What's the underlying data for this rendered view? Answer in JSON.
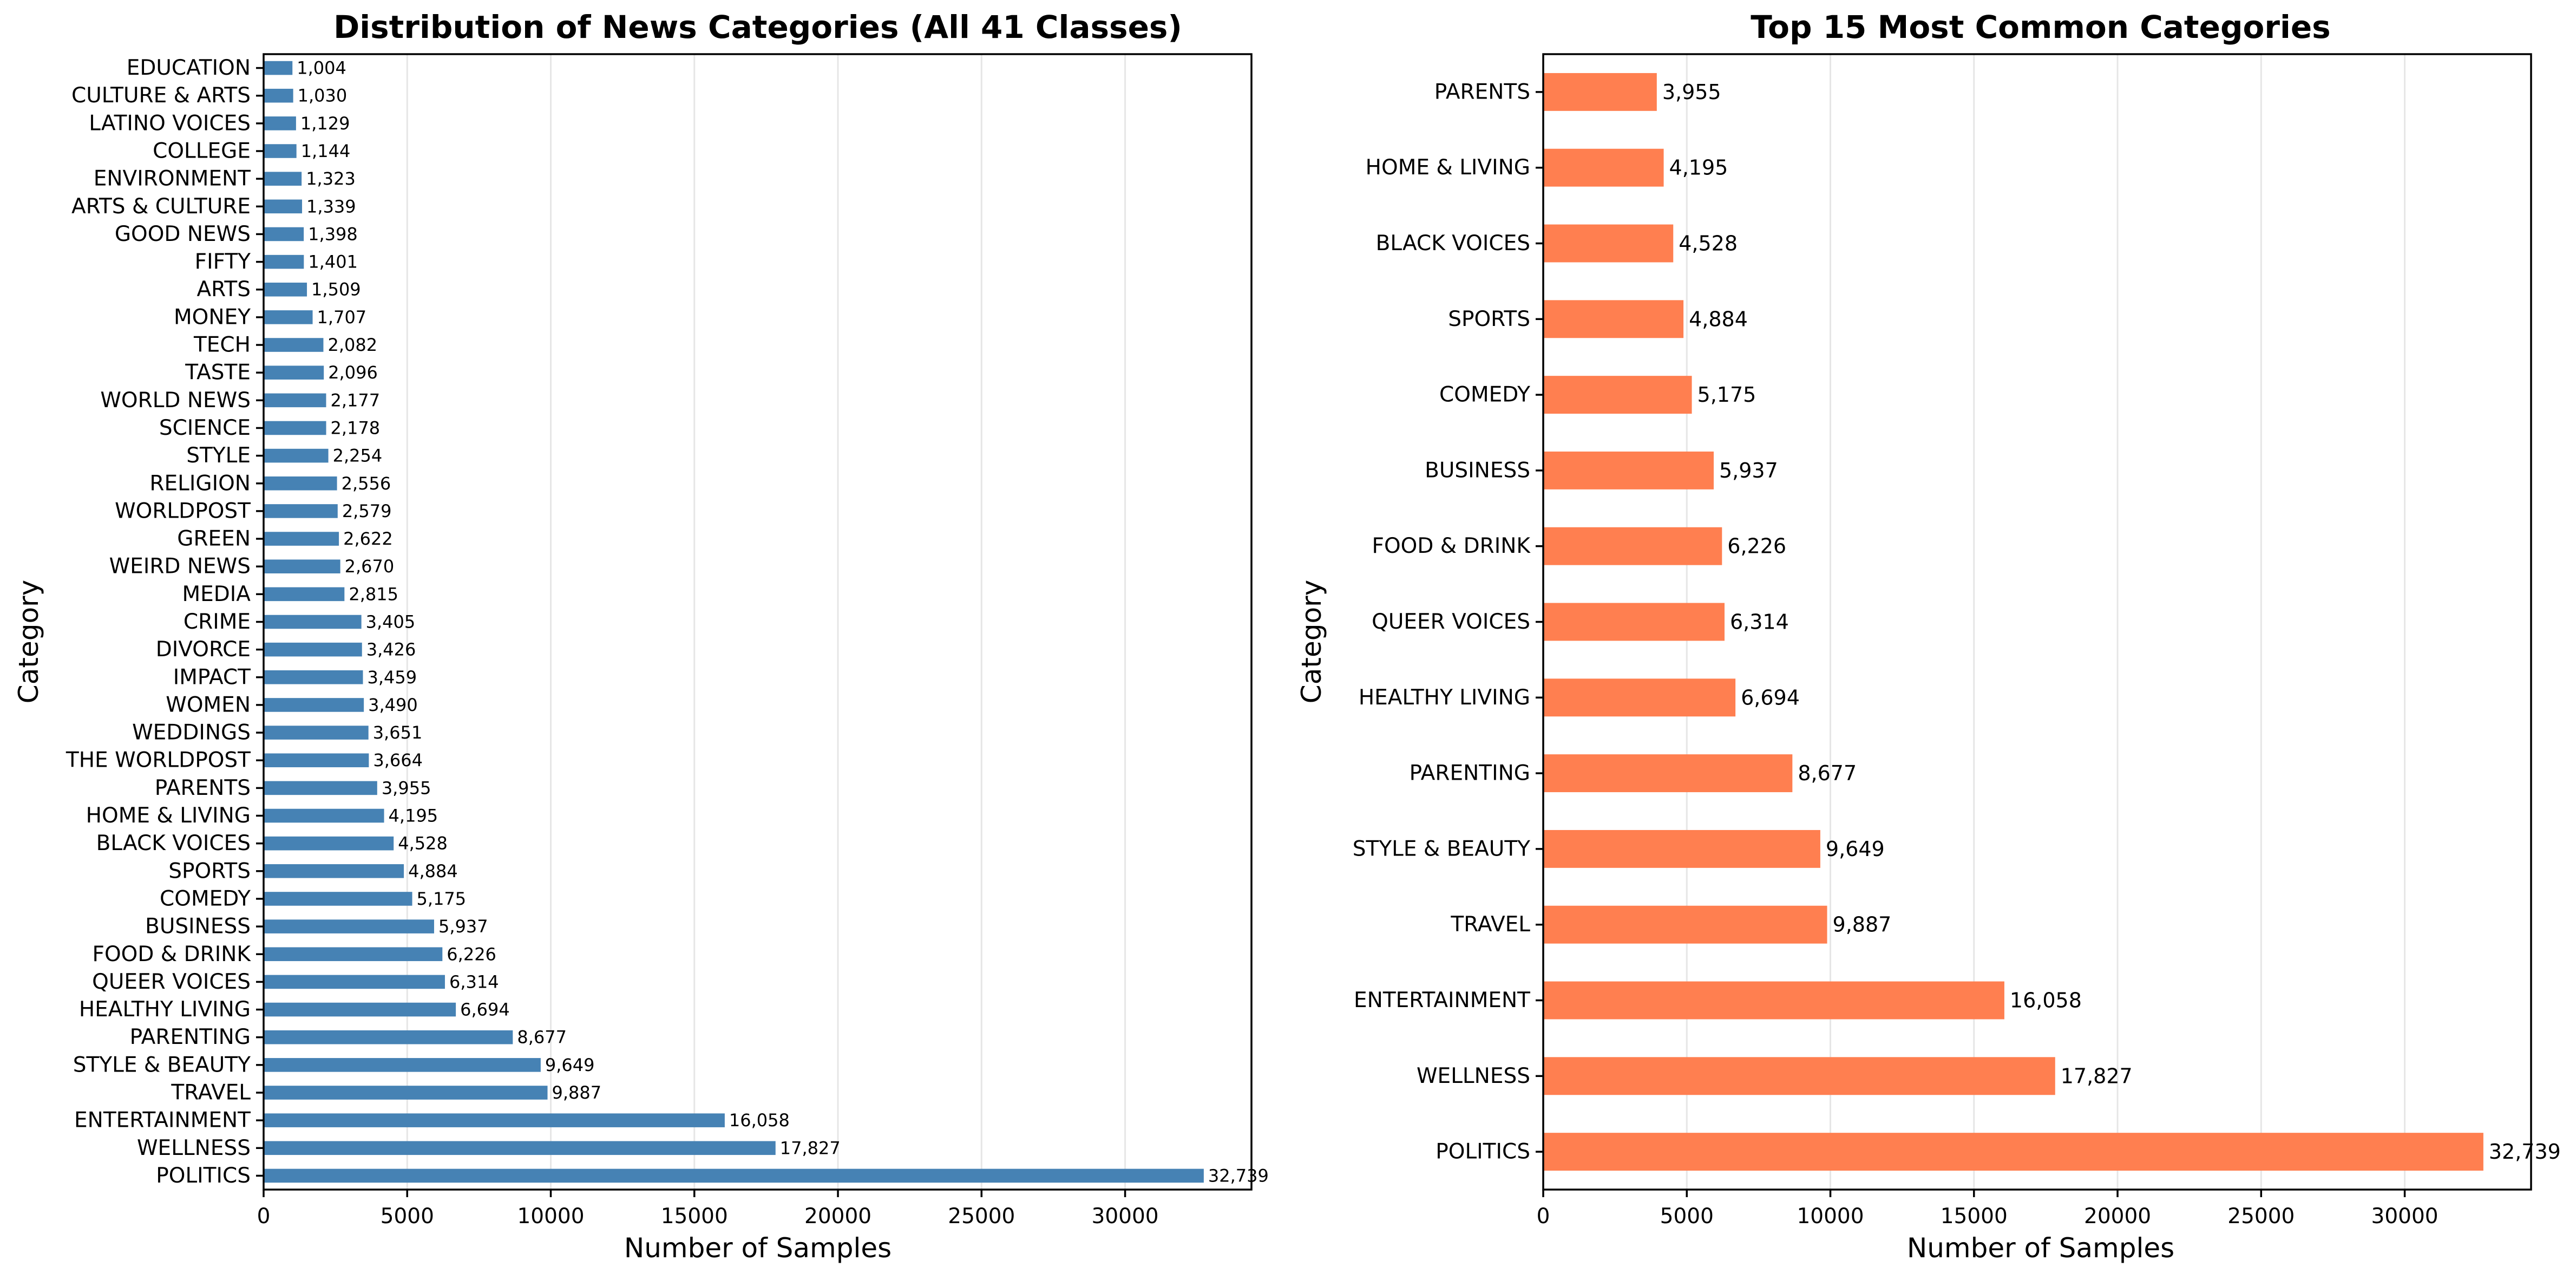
{
  "chart_data": [
    {
      "type": "bar",
      "orientation": "horizontal",
      "title": "Distribution of News Categories (All 41 Classes)",
      "xlabel": "Number of Samples",
      "ylabel": "Category",
      "xlim": [
        0,
        34400
      ],
      "xticks": [
        0,
        5000,
        10000,
        15000,
        20000,
        25000,
        30000
      ],
      "grid": "vertical",
      "bar_color": "#4682b4",
      "categories": [
        "POLITICS",
        "WELLNESS",
        "ENTERTAINMENT",
        "TRAVEL",
        "STYLE & BEAUTY",
        "PARENTING",
        "HEALTHY LIVING",
        "QUEER VOICES",
        "FOOD & DRINK",
        "BUSINESS",
        "COMEDY",
        "SPORTS",
        "BLACK VOICES",
        "HOME & LIVING",
        "PARENTS",
        "THE WORLDPOST",
        "WEDDINGS",
        "WOMEN",
        "IMPACT",
        "DIVORCE",
        "CRIME",
        "MEDIA",
        "WEIRD NEWS",
        "GREEN",
        "WORLDPOST",
        "RELIGION",
        "STYLE",
        "SCIENCE",
        "WORLD NEWS",
        "TASTE",
        "TECH",
        "MONEY",
        "ARTS",
        "FIFTY",
        "GOOD NEWS",
        "ARTS & CULTURE",
        "ENVIRONMENT",
        "COLLEGE",
        "LATINO VOICES",
        "CULTURE & ARTS",
        "EDUCATION"
      ],
      "values": [
        32739,
        17827,
        16058,
        9887,
        9649,
        8677,
        6694,
        6314,
        6226,
        5937,
        5175,
        4884,
        4528,
        4195,
        3955,
        3664,
        3651,
        3490,
        3459,
        3426,
        3405,
        2815,
        2670,
        2622,
        2579,
        2556,
        2254,
        2178,
        2177,
        2096,
        2082,
        1707,
        1509,
        1401,
        1398,
        1339,
        1323,
        1144,
        1129,
        1030,
        1004
      ],
      "value_labels": [
        "32,739",
        "17,827",
        "16,058",
        "9,887",
        "9,649",
        "8,677",
        "6,694",
        "6,314",
        "6,226",
        "5,937",
        "5,175",
        "4,884",
        "4,528",
        "4,195",
        "3,955",
        "3,664",
        "3,651",
        "3,490",
        "3,459",
        "3,426",
        "3,405",
        "2,815",
        "2,670",
        "2,622",
        "2,579",
        "2,556",
        "2,254",
        "2,178",
        "2,177",
        "2,096",
        "2,082",
        "1,707",
        "1,509",
        "1,401",
        "1,398",
        "1,339",
        "1,323",
        "1,144",
        "1,129",
        "1,030",
        "1,004"
      ]
    },
    {
      "type": "bar",
      "orientation": "horizontal",
      "title": "Top 15 Most Common Categories",
      "xlabel": "Number of Samples",
      "ylabel": "Category",
      "xlim": [
        0,
        34400
      ],
      "xticks": [
        0,
        5000,
        10000,
        15000,
        20000,
        25000,
        30000
      ],
      "grid": "vertical",
      "bar_color": "#ff7f50",
      "categories": [
        "POLITICS",
        "WELLNESS",
        "ENTERTAINMENT",
        "TRAVEL",
        "STYLE & BEAUTY",
        "PARENTING",
        "HEALTHY LIVING",
        "QUEER VOICES",
        "FOOD & DRINK",
        "BUSINESS",
        "COMEDY",
        "SPORTS",
        "BLACK VOICES",
        "HOME & LIVING",
        "PARENTS"
      ],
      "values": [
        32739,
        17827,
        16058,
        9887,
        9649,
        8677,
        6694,
        6314,
        6226,
        5937,
        5175,
        4884,
        4528,
        4195,
        3955
      ],
      "value_labels": [
        "32,739",
        "17,827",
        "16,058",
        "9,887",
        "9,649",
        "8,677",
        "6,694",
        "6,314",
        "6,226",
        "5,937",
        "5,175",
        "4,884",
        "4,528",
        "4,195",
        "3,955"
      ]
    }
  ]
}
